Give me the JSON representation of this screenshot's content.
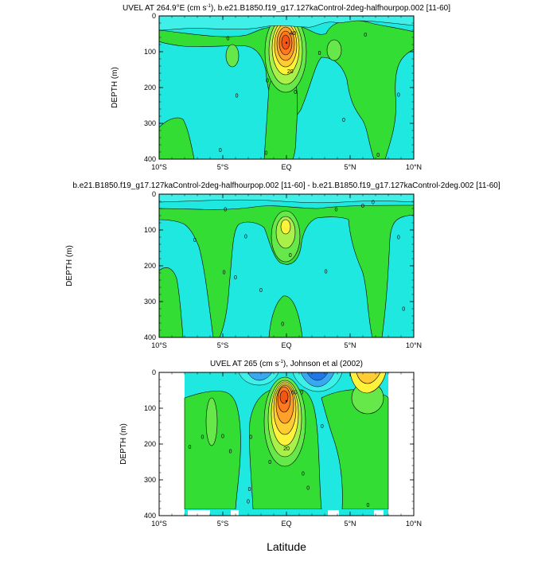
{
  "figure": {
    "xlabel": "Latitude",
    "colors": {
      "background": "#ffffff",
      "axis": "#000000",
      "cyan": "#1ee8e0",
      "light_cyan": "#3ef0e8",
      "green_light": "#4cee6a",
      "green": "#33dd33",
      "green_mid": "#66e84a",
      "lime": "#aaf04a",
      "yellow": "#fff23a",
      "gold": "#ffcc33",
      "orange": "#ffa02a",
      "dark_orange": "#ff7a1e",
      "red_orange": "#f25514",
      "blue_light": "#3aa8f0",
      "blue": "#1f78e6",
      "missing": "#ffffff"
    }
  },
  "chart_data": [
    {
      "type": "contour",
      "title": "UVEL AT 264.9°E (cm s⁻¹), b.e21.B1850.f19_g17.127kaControl-2deg-halfhourpop.002 [11-60]",
      "title_main": "UVEL AT 264.9°E (cm s",
      "title_sup": "-1",
      "title_rest": "), b.e21.B1850.f19_g17.127kaControl-2deg-halfhourpop.002 [11-60]",
      "xlabel": "",
      "ylabel": "DEPTH (m)",
      "xlim": [
        -10,
        10
      ],
      "ylim": [
        400,
        0
      ],
      "xticks": [
        "10°S",
        "5°S",
        "EQ",
        "5°N",
        "10°N"
      ],
      "xtick_values": [
        -10,
        -5,
        0,
        5,
        10
      ],
      "yticks": [
        "0",
        "100",
        "200",
        "300",
        "400"
      ],
      "ytick_values": [
        0,
        100,
        200,
        300,
        400
      ],
      "contour_labels": [
        {
          "text": "0",
          "lat": -4.6,
          "depth": 62
        },
        {
          "text": "0",
          "lat": -3.9,
          "depth": 222
        },
        {
          "text": "0",
          "lat": -5.2,
          "depth": 374
        },
        {
          "text": "0",
          "lat": -1.5,
          "depth": 180
        },
        {
          "text": "0",
          "lat": -1.6,
          "depth": 382
        },
        {
          "text": "0",
          "lat": 0.7,
          "depth": 212
        },
        {
          "text": "0",
          "lat": 2.6,
          "depth": 103
        },
        {
          "text": "0",
          "lat": 4.5,
          "depth": 290
        },
        {
          "text": "0",
          "lat": 6.2,
          "depth": 52
        },
        {
          "text": "0",
          "lat": 8.8,
          "depth": 220
        },
        {
          "text": "0",
          "lat": 7.2,
          "depth": 388
        },
        {
          "text": "20",
          "lat": 0.3,
          "depth": 154
        },
        {
          "text": "40",
          "lat": 0.5,
          "depth": 48
        }
      ],
      "core_max": {
        "lat": 0.0,
        "depth": 75,
        "label": "max"
      }
    },
    {
      "type": "contour",
      "title": "b.e21.B1850.f19_g17.127kaControl-2deg-halfhourpop.002 [11-60] - b.e21.B1850.f19_g17.127kaControl-2deg.002 [11-60]",
      "xlabel": "",
      "ylabel": "DEPTH (m)",
      "xlim": [
        -10,
        10
      ],
      "ylim": [
        400,
        0
      ],
      "xticks": [
        "10°S",
        "5°S",
        "EQ",
        "5°N",
        "10°N"
      ],
      "xtick_values": [
        -10,
        -5,
        0,
        5,
        10
      ],
      "yticks": [
        "0",
        "100",
        "200",
        "300",
        "400"
      ],
      "ytick_values": [
        0,
        100,
        200,
        300,
        400
      ],
      "contour_labels": [
        {
          "text": "0",
          "lat": -4.8,
          "depth": 42
        },
        {
          "text": "0",
          "lat": -7.2,
          "depth": 128
        },
        {
          "text": "0",
          "lat": -4.9,
          "depth": 218
        },
        {
          "text": "0",
          "lat": -4.0,
          "depth": 232
        },
        {
          "text": "0",
          "lat": -3.2,
          "depth": 118
        },
        {
          "text": "0",
          "lat": -2.0,
          "depth": 268
        },
        {
          "text": "0",
          "lat": -0.3,
          "depth": 362
        },
        {
          "text": "0",
          "lat": 0.3,
          "depth": 170
        },
        {
          "text": "0",
          "lat": 3.9,
          "depth": 42
        },
        {
          "text": "0",
          "lat": 6.8,
          "depth": 22
        },
        {
          "text": "0",
          "lat": 6.0,
          "depth": 32
        },
        {
          "text": "0",
          "lat": 3.1,
          "depth": 215
        },
        {
          "text": "0",
          "lat": 8.8,
          "depth": 120
        },
        {
          "text": "0",
          "lat": 9.2,
          "depth": 320
        }
      ]
    },
    {
      "type": "contour",
      "title": "UVEL AT 265 (cm s⁻¹), Johnson et al (2002)",
      "title_main": "UVEL AT 265 (cm s",
      "title_sup": "-1",
      "title_rest": "), Johnson et al (2002)",
      "xlabel": "Latitude",
      "ylabel": "DEPTH (m)",
      "xlim": [
        -10,
        10
      ],
      "ylim": [
        400,
        0
      ],
      "data_lat_range": [
        -8,
        8
      ],
      "xticks": [
        "10°S",
        "5°S",
        "EQ",
        "5°N",
        "10°N"
      ],
      "xtick_values": [
        -10,
        -5,
        0,
        5,
        10
      ],
      "yticks": [
        "0",
        "100",
        "200",
        "300",
        "400"
      ],
      "ytick_values": [
        0,
        100,
        200,
        300,
        400
      ],
      "contour_labels": [
        {
          "text": "0",
          "lat": -7.6,
          "depth": 208
        },
        {
          "text": "0",
          "lat": -6.6,
          "depth": 180
        },
        {
          "text": "0",
          "lat": -5.0,
          "depth": 178
        },
        {
          "text": "0",
          "lat": -4.4,
          "depth": 220
        },
        {
          "text": "0",
          "lat": -2.8,
          "depth": 180
        },
        {
          "text": "0",
          "lat": -2.9,
          "depth": 325
        },
        {
          "text": "0",
          "lat": -3.0,
          "depth": 360
        },
        {
          "text": "0",
          "lat": -1.3,
          "depth": 250
        },
        {
          "text": "0",
          "lat": 2.8,
          "depth": 150
        },
        {
          "text": "0",
          "lat": 1.3,
          "depth": 282
        },
        {
          "text": "0",
          "lat": 1.7,
          "depth": 322
        },
        {
          "text": "0",
          "lat": 6.4,
          "depth": 370
        },
        {
          "text": "0",
          "lat": 1.2,
          "depth": 56
        },
        {
          "text": "20",
          "lat": 0.0,
          "depth": 212
        },
        {
          "text": "60",
          "lat": 0.6,
          "depth": 56
        }
      ],
      "core_max": {
        "lat": 0.0,
        "depth": 80,
        "label": "max"
      }
    }
  ]
}
